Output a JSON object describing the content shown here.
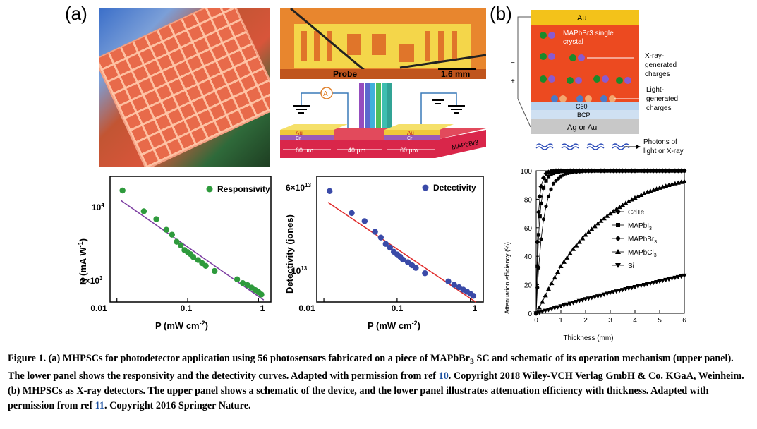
{
  "panel_a_label": "(a)",
  "panel_b_label": "(b)",
  "micrograph": {
    "probe_label": "Probe",
    "scale_label": "1.6 mm"
  },
  "schematic_a": {
    "ammeter": "A",
    "left_electrode": [
      "Au",
      "Cr"
    ],
    "right_electrode": [
      "Au",
      "Cr"
    ],
    "substrate": "MAPbBr3",
    "dims": [
      "60 μm",
      "40 μm",
      "60 μm"
    ]
  },
  "schematic_b": {
    "au": "Au",
    "crystal_line1": "MAPbBr3 single",
    "crystal_line2": "crystal",
    "c60": "C60",
    "bcp": "BCP",
    "bottom": "Ag or Au",
    "xray_label": [
      "X-ray-",
      "generated",
      "charges"
    ],
    "light_label": [
      "Light-",
      "generated",
      "charges"
    ],
    "photon_label": [
      "Photons of",
      "light or X-ray"
    ],
    "minus": "−",
    "plus": "+"
  },
  "chart_data": [
    {
      "type": "scatter",
      "legend": [
        "Responsivity"
      ],
      "xlabel": "P (mW cm-2)",
      "ylabel": "R (mA W-1)",
      "x_scale": "log",
      "y_scale": "log",
      "xlim": [
        0.008,
        1.5
      ],
      "ylim": [
        1700,
        22000
      ],
      "xticks": [
        "0.01",
        "0.1",
        "1"
      ],
      "yticks": [
        "10^4",
        "2×10^3"
      ],
      "color": "#2e9a3c",
      "line_color": "#7a3aa0",
      "x": [
        0.012,
        0.024,
        0.036,
        0.05,
        0.06,
        0.07,
        0.08,
        0.09,
        0.1,
        0.11,
        0.12,
        0.14,
        0.16,
        0.18,
        0.24,
        0.5,
        0.6,
        0.7,
        0.8,
        0.9,
        1.0,
        1.1
      ],
      "y": [
        16500,
        10800,
        9200,
        7400,
        6700,
        5800,
        5400,
        4900,
        4700,
        4500,
        4250,
        4000,
        3750,
        3550,
        3200,
        2700,
        2500,
        2400,
        2280,
        2170,
        2080,
        1980
      ]
    },
    {
      "type": "scatter",
      "legend": [
        "Detectivity"
      ],
      "xlabel": "P (mW cm-2)",
      "ylabel": "Detectivity (jones)",
      "x_scale": "log",
      "y_scale": "log",
      "xlim": [
        0.008,
        1.5
      ],
      "ylim": [
        6500000000000.0,
        70000000000000.0
      ],
      "xticks": [
        "0.01",
        "0.1",
        "1"
      ],
      "yticks": [
        "6×10^13",
        "10^13"
      ],
      "color": "#3a4aa8",
      "line_color": "#e02a2a",
      "x": [
        0.012,
        0.024,
        0.036,
        0.05,
        0.06,
        0.07,
        0.08,
        0.09,
        0.1,
        0.11,
        0.12,
        0.14,
        0.16,
        0.18,
        0.24,
        0.5,
        0.6,
        0.7,
        0.8,
        0.9,
        1.0,
        1.1
      ],
      "y": [
        53000000000000.0,
        35000000000000.0,
        30000000000000.0,
        24500000000000.0,
        22000000000000.0,
        19500000000000.0,
        18200000000000.0,
        16800000000000.0,
        16000000000000.0,
        15300000000000.0,
        14500000000000.0,
        13800000000000.0,
        13000000000000.0,
        12400000000000.0,
        11200000000000.0,
        9600000000000.0,
        9000000000000.0,
        8600000000000.0,
        8200000000000.0,
        7900000000000.0,
        7600000000000.0,
        7300000000000.0
      ]
    },
    {
      "type": "line",
      "xlabel": "Thickness (mm)",
      "ylabel": "Attenuation efficiency (%)",
      "xlim": [
        0,
        6
      ],
      "ylim": [
        0,
        100
      ],
      "xticks": [
        "0",
        "1",
        "2",
        "3",
        "4",
        "5",
        "6"
      ],
      "yticks": [
        "0",
        "20",
        "40",
        "60",
        "80",
        "100"
      ],
      "series": [
        {
          "name": "CdTe",
          "marker": "diamond",
          "x": [
            0,
            0.05,
            0.1,
            0.15,
            0.2,
            0.3,
            0.4,
            0.5,
            0.6,
            0.8,
            1.0,
            1.5,
            2,
            3,
            4,
            5,
            6
          ],
          "y": [
            0,
            50,
            71,
            82,
            89,
            95,
            98,
            99,
            99.5,
            100,
            100,
            100,
            100,
            100,
            100,
            100,
            100
          ]
        },
        {
          "name": "MAPbI3",
          "marker": "square",
          "x": [
            0,
            0.05,
            0.1,
            0.15,
            0.2,
            0.3,
            0.4,
            0.5,
            0.6,
            0.8,
            1.0,
            1.2,
            1.5,
            2,
            3,
            4,
            5,
            6
          ],
          "y": [
            0,
            33,
            55,
            68,
            77,
            88,
            93,
            96,
            97.5,
            99,
            99.6,
            100,
            100,
            100,
            100,
            100,
            100,
            100
          ]
        },
        {
          "name": "MAPbBr3",
          "marker": "circle",
          "x": [
            0,
            0.05,
            0.1,
            0.2,
            0.3,
            0.4,
            0.5,
            0.6,
            0.7,
            0.8,
            1.0,
            1.2,
            1.5,
            2,
            2.5,
            3,
            4,
            5,
            6
          ],
          "y": [
            0,
            18,
            32,
            52,
            66,
            75,
            82,
            87,
            91,
            93,
            96,
            98,
            99,
            99.7,
            100,
            100,
            100,
            100,
            100
          ]
        },
        {
          "name": "MAPbCl3",
          "marker": "triangle-up",
          "x": [
            0,
            0.25,
            0.5,
            0.75,
            1,
            1.5,
            2,
            2.5,
            3,
            3.5,
            4,
            4.5,
            5,
            5.5,
            6
          ],
          "y": [
            0,
            8,
            17,
            25,
            33,
            45,
            55,
            63,
            70,
            76,
            81,
            85,
            88,
            90.5,
            92.5
          ]
        },
        {
          "name": "Si",
          "marker": "triangle-down",
          "x": [
            0,
            0.5,
            1,
            1.5,
            2,
            2.5,
            3,
            3.5,
            4,
            4.5,
            5,
            5.5,
            6
          ],
          "y": [
            0,
            2.5,
            5,
            7.5,
            10,
            12,
            14.5,
            16.5,
            18.5,
            20.5,
            22.5,
            24.5,
            26.5
          ]
        }
      ]
    }
  ],
  "caption": {
    "p1": "Figure 1. (a) MHPSCs for photodetector application using 56 photosensors fabricated on a piece of MAPbBr",
    "sub1": "3",
    "p2": " SC and schematic of its operation mechanism (upper panel). The lower panel shows the responsivity and the detectivity curves. Adapted with permission from ref ",
    "ref1": "10",
    "p3": ". Copyright 2018 Wiley-VCH Verlag GmbH & Co. KGaA, Weinheim. (b) MHPSCs as X-ray detectors. The upper panel shows a schematic of the device, and the lower panel illustrates attenuation efficiency with thickness. Adapted with permission from ref ",
    "ref2": "11",
    "p4": ". Copyright 2016 Springer Nature."
  }
}
